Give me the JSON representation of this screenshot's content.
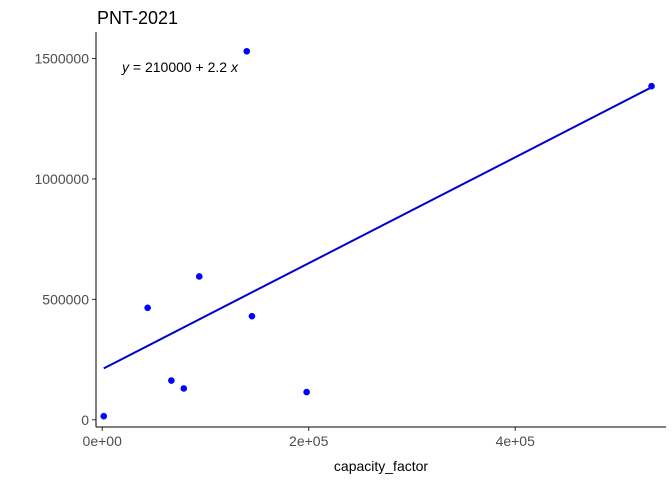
{
  "chart_data": {
    "type": "scatter",
    "title": "PNT-2021",
    "xlabel": "capacity_factor",
    "ylabel": "",
    "xlim": [
      -6000,
      546000
    ],
    "ylim": [
      -30000,
      1610000
    ],
    "x_ticks": [
      {
        "value": 0,
        "label": "0e+00"
      },
      {
        "value": 200000,
        "label": "2e+05"
      },
      {
        "value": 400000,
        "label": "4e+05"
      }
    ],
    "y_ticks": [
      {
        "value": 0,
        "label": "0"
      },
      {
        "value": 500000,
        "label": "500000"
      },
      {
        "value": 1000000,
        "label": "1000000"
      },
      {
        "value": 1500000,
        "label": "1500000"
      }
    ],
    "points": [
      {
        "x": 1500,
        "y": 15000
      },
      {
        "x": 44000,
        "y": 465000
      },
      {
        "x": 67000,
        "y": 163000
      },
      {
        "x": 79000,
        "y": 130000
      },
      {
        "x": 94000,
        "y": 595000
      },
      {
        "x": 140000,
        "y": 1530000
      },
      {
        "x": 145000,
        "y": 430000
      },
      {
        "x": 198000,
        "y": 115000
      },
      {
        "x": 532000,
        "y": 1385000
      }
    ],
    "fit_line": {
      "intercept": 210000,
      "slope": 2.2,
      "x_from": 1500,
      "x_to": 532000
    },
    "equation": {
      "lhs": "y",
      "eq": " = 210000 + 2.2 ",
      "var": "x"
    },
    "grid": false,
    "colors": {
      "points": "#0000ff",
      "line": "#0000cd"
    }
  }
}
